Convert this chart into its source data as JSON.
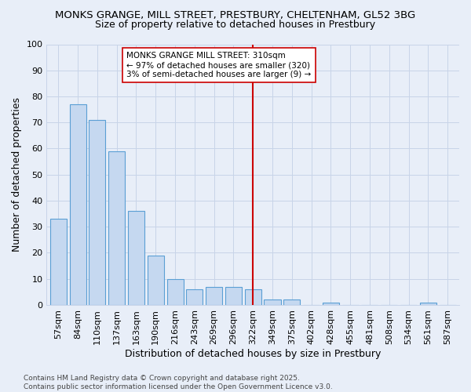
{
  "title1": "MONKS GRANGE, MILL STREET, PRESTBURY, CHELTENHAM, GL52 3BG",
  "title2": "Size of property relative to detached houses in Prestbury",
  "xlabel": "Distribution of detached houses by size in Prestbury",
  "ylabel": "Number of detached properties",
  "categories": [
    "57sqm",
    "84sqm",
    "110sqm",
    "137sqm",
    "163sqm",
    "190sqm",
    "216sqm",
    "243sqm",
    "269sqm",
    "296sqm",
    "322sqm",
    "349sqm",
    "375sqm",
    "402sqm",
    "428sqm",
    "455sqm",
    "481sqm",
    "508sqm",
    "534sqm",
    "561sqm",
    "587sqm"
  ],
  "values": [
    33,
    77,
    71,
    59,
    36,
    19,
    10,
    6,
    7,
    7,
    6,
    2,
    2,
    0,
    1,
    0,
    0,
    0,
    0,
    1,
    0
  ],
  "bar_color": "#c5d8f0",
  "bar_edge_color": "#5a9fd4",
  "vline_x_idx": 10,
  "vline_color": "#cc0000",
  "annotation_text": "MONKS GRANGE MILL STREET: 310sqm\n← 97% of detached houses are smaller (320)\n3% of semi-detached houses are larger (9) →",
  "annotation_box_color": "#ffffff",
  "annotation_box_edge": "#cc0000",
  "ylim": [
    0,
    100
  ],
  "yticks": [
    0,
    10,
    20,
    30,
    40,
    50,
    60,
    70,
    80,
    90,
    100
  ],
  "grid_color": "#c8d4e8",
  "bg_color": "#e8eef8",
  "footer_text": "Contains HM Land Registry data © Crown copyright and database right 2025.\nContains public sector information licensed under the Open Government Licence v3.0.",
  "title1_fontsize": 9.5,
  "title2_fontsize": 9,
  "axis_label_fontsize": 9,
  "tick_fontsize": 8,
  "annotation_fontsize": 7.5,
  "footer_fontsize": 6.5
}
